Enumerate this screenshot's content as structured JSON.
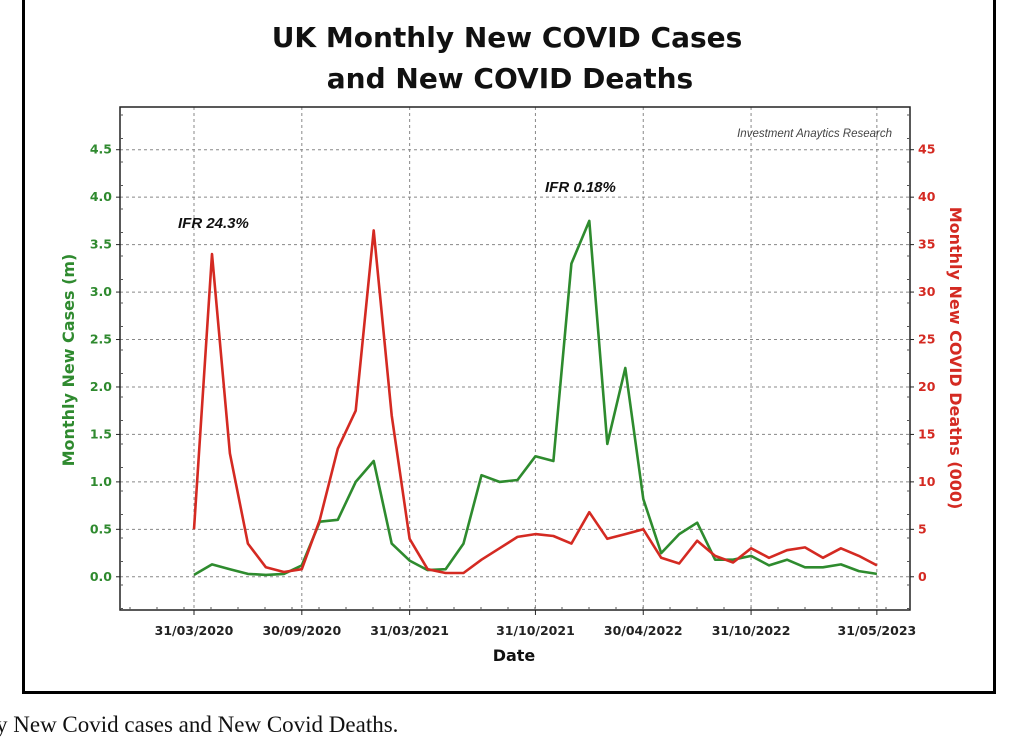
{
  "chart_data": {
    "type": "line",
    "title": [
      "UK Monthly New COVID Cases",
      "and New COVID Deaths"
    ],
    "xlabel": "Date",
    "ylabel_left": "Monthly New Cases (m)",
    "ylabel_right": "Monthly New COVID Deaths (000)",
    "watermark": "Investment Anaytics Research",
    "x": [
      "2020-03",
      "2020-04",
      "2020-05",
      "2020-06",
      "2020-07",
      "2020-08",
      "2020-09",
      "2020-10",
      "2020-11",
      "2020-12",
      "2021-01",
      "2021-02",
      "2021-03",
      "2021-04",
      "2021-05",
      "2021-06",
      "2021-07",
      "2021-08",
      "2021-09",
      "2021-10",
      "2021-11",
      "2021-12",
      "2022-01",
      "2022-02",
      "2022-03",
      "2022-04",
      "2022-05",
      "2022-06",
      "2022-07",
      "2022-08",
      "2022-09",
      "2022-10",
      "2022-11",
      "2022-12",
      "2023-01",
      "2023-02",
      "2023-03",
      "2023-04",
      "2023-05"
    ],
    "x_ticks": [
      {
        "label": "31/03/2020",
        "month": "2020-03"
      },
      {
        "label": "30/09/2020",
        "month": "2020-09"
      },
      {
        "label": "31/03/2021",
        "month": "2021-03"
      },
      {
        "label": "31/10/2021",
        "month": "2021-10"
      },
      {
        "label": "30/04/2022",
        "month": "2022-04"
      },
      {
        "label": "31/10/2022",
        "month": "2022-10"
      },
      {
        "label": "31/05/2023",
        "month": "2023-05"
      }
    ],
    "y_left": {
      "ticks": [
        "0.0",
        "0.5",
        "1.0",
        "1.5",
        "2.0",
        "2.5",
        "3.0",
        "3.5",
        "4.0",
        "4.5"
      ],
      "range": [
        -0.35,
        4.95
      ],
      "color": "#2f8a2f"
    },
    "y_right": {
      "ticks": [
        "0",
        "5",
        "10",
        "15",
        "20",
        "25",
        "30",
        "35",
        "40",
        "45"
      ],
      "range": [
        -3.5,
        49.5
      ],
      "color": "#d42a22"
    },
    "grid": true,
    "series": [
      {
        "axis": "left",
        "color": "#2e8b2e",
        "values": [
          0.02,
          0.13,
          0.08,
          0.03,
          0.02,
          0.03,
          0.12,
          0.58,
          0.6,
          1.0,
          1.22,
          0.35,
          0.17,
          0.07,
          0.08,
          0.35,
          1.07,
          1.0,
          1.02,
          1.27,
          1.22,
          3.3,
          3.75,
          1.4,
          2.2,
          0.82,
          0.25,
          0.45,
          0.57,
          0.18,
          0.18,
          0.22,
          0.12,
          0.18,
          0.1,
          0.1,
          0.13,
          0.06,
          0.03
        ]
      },
      {
        "axis": "right",
        "color": "#d42a22",
        "values": [
          5,
          34,
          13,
          3.5,
          1,
          0.5,
          0.8,
          6,
          13.5,
          17.5,
          36.5,
          17,
          4,
          0.8,
          0.4,
          0.4,
          1.8,
          3,
          4.2,
          4.5,
          4.3,
          3.5,
          6.8,
          4,
          4.5,
          5,
          2,
          1.4,
          3.8,
          2.2,
          1.5,
          3,
          2,
          2.8,
          3.1,
          2,
          3,
          2.2,
          1.2
        ]
      }
    ],
    "annotations": [
      {
        "text": "IFR 24.3%",
        "month": "2020-03",
        "value_left": 3.75
      },
      {
        "text": "IFR 0.18%",
        "month": "2021-11",
        "value_left": 4.15
      }
    ]
  },
  "caption": "y New Covid cases and New Covid Deaths."
}
